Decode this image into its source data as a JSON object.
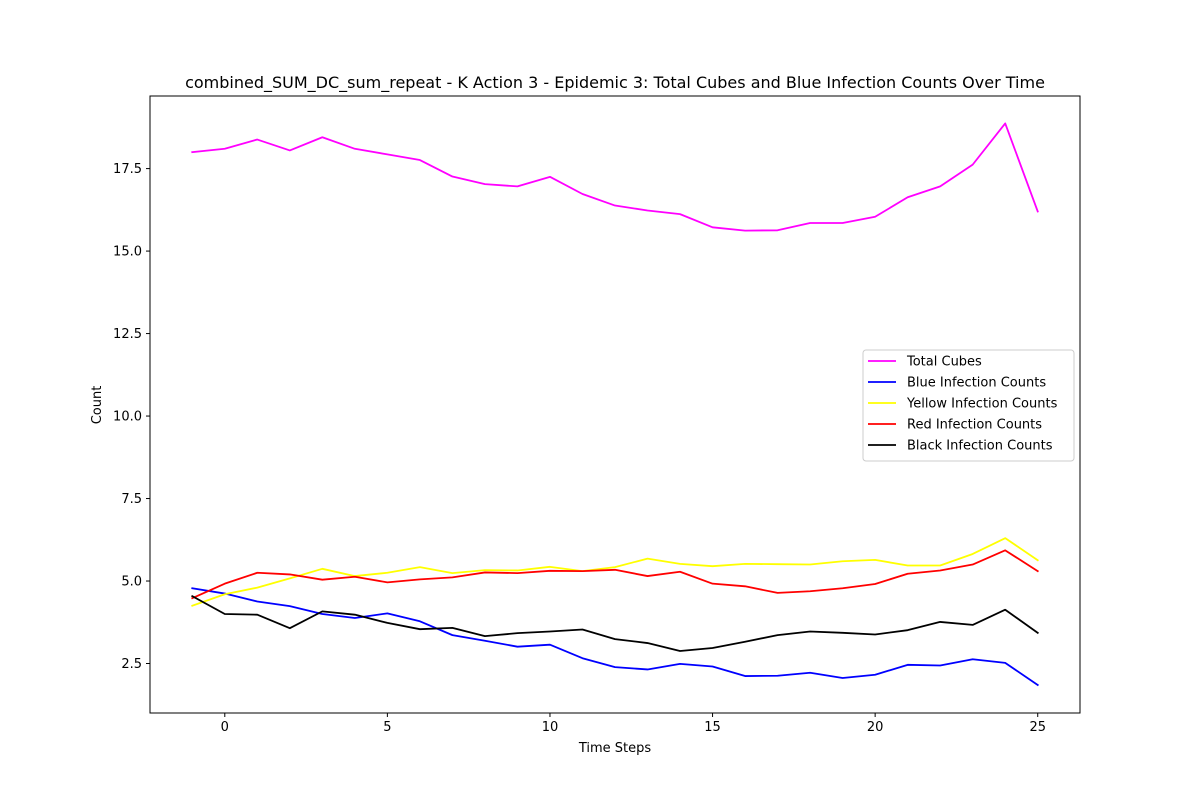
{
  "chart_data": {
    "type": "line",
    "title": "combined_SUM_DC_sum_repeat - K Action 3 - Epidemic 3: Total Cubes and Blue Infection Counts Over Time",
    "xlabel": "Time Steps",
    "ylabel": "Count",
    "xlim": [
      -2.3,
      26.3
    ],
    "ylim": [
      1.0,
      19.7
    ],
    "xticks": [
      0,
      5,
      10,
      15,
      20,
      25
    ],
    "yticks": [
      2.5,
      5.0,
      7.5,
      10.0,
      12.5,
      15.0,
      17.5
    ],
    "ytick_labels": [
      "2.5",
      "5.0",
      "7.5",
      "10.0",
      "12.5",
      "15.0",
      "17.5"
    ],
    "grid": false,
    "legend_position": "center-right",
    "x": [
      -1,
      0,
      1,
      2,
      3,
      4,
      5,
      6,
      7,
      8,
      9,
      10,
      11,
      12,
      13,
      14,
      15,
      16,
      17,
      18,
      19,
      20,
      21,
      22,
      23,
      24,
      25
    ],
    "series": [
      {
        "name": "Total Cubes",
        "color": "#ff00ff",
        "values": [
          18.0,
          18.1,
          18.38,
          18.05,
          18.45,
          18.1,
          17.93,
          17.76,
          17.26,
          17.03,
          16.96,
          17.25,
          16.73,
          16.38,
          16.23,
          16.12,
          15.72,
          15.62,
          15.63,
          15.85,
          15.85,
          16.04,
          16.63,
          16.96,
          17.62,
          18.87,
          16.2
        ]
      },
      {
        "name": "Blue Infection Counts",
        "color": "#0000ff",
        "values": [
          4.78,
          4.62,
          4.38,
          4.24,
          4.0,
          3.88,
          4.02,
          3.78,
          3.36,
          3.19,
          3.01,
          3.07,
          2.66,
          2.39,
          2.32,
          2.49,
          2.41,
          2.12,
          2.13,
          2.22,
          2.06,
          2.16,
          2.46,
          2.44,
          2.63,
          2.52,
          1.85
        ]
      },
      {
        "name": "Yellow Infection Counts",
        "color": "#ffff00",
        "values": [
          4.25,
          4.6,
          4.8,
          5.08,
          5.37,
          5.15,
          5.25,
          5.42,
          5.24,
          5.33,
          5.32,
          5.43,
          5.3,
          5.42,
          5.68,
          5.52,
          5.45,
          5.52,
          5.51,
          5.5,
          5.6,
          5.64,
          5.47,
          5.47,
          5.82,
          6.3,
          5.63
        ]
      },
      {
        "name": "Red Infection Counts",
        "color": "#ff0000",
        "values": [
          4.48,
          4.92,
          5.25,
          5.2,
          5.04,
          5.13,
          4.96,
          5.05,
          5.11,
          5.26,
          5.24,
          5.31,
          5.3,
          5.34,
          5.15,
          5.28,
          4.92,
          4.84,
          4.64,
          4.69,
          4.78,
          4.91,
          5.22,
          5.32,
          5.5,
          5.93,
          5.3
        ]
      },
      {
        "name": "Black Infection Counts",
        "color": "#000000",
        "values": [
          4.54,
          4.0,
          3.98,
          3.57,
          4.08,
          3.98,
          3.73,
          3.54,
          3.58,
          3.33,
          3.42,
          3.47,
          3.53,
          3.24,
          3.12,
          2.88,
          2.97,
          3.16,
          3.36,
          3.47,
          3.43,
          3.38,
          3.51,
          3.76,
          3.67,
          4.13,
          3.43
        ]
      }
    ]
  }
}
